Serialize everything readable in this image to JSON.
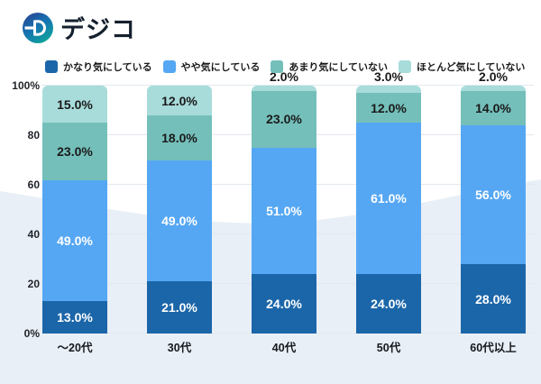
{
  "logo": {
    "text": "デジコ"
  },
  "colors": {
    "background": "#ffffff",
    "wave_fill": "#e9eff6",
    "gridline": "#e2e8ee",
    "text_dark": "#1a1a1a",
    "logo_text": "#15202e",
    "logo_gradient": [
      "#2c3f8f",
      "#1575b2",
      "#10a19c"
    ]
  },
  "chart_data": {
    "type": "bar",
    "variant": "stacked-percentage",
    "categories": [
      "～20代",
      "30代",
      "40代",
      "50代",
      "60代以上"
    ],
    "series": [
      {
        "name": "かなり気にしている",
        "color": "#1b66a9",
        "label_color": "#ffffff",
        "values": [
          13,
          21,
          24,
          24,
          28
        ]
      },
      {
        "name": "やや気にしている",
        "color": "#55a7f3",
        "label_color": "#ffffff",
        "values": [
          49,
          49,
          51,
          61,
          56
        ]
      },
      {
        "name": "あまり気にしていない",
        "color": "#74bfba",
        "label_color": "#1a1a1a",
        "values": [
          23,
          18,
          23,
          12,
          14
        ]
      },
      {
        "name": "ほとんど気にしていない",
        "color": "#a8dcdb",
        "label_color": "#1a1a1a",
        "values": [
          15,
          12,
          2,
          3,
          2
        ]
      }
    ],
    "value_labels": {
      "format": "one-decimal-percent",
      "outside_threshold": 5,
      "outside_values": {
        "40代": "2.0%",
        "50代": "3.0%",
        "60代以上": "2.0%"
      }
    },
    "y_ticks": [
      {
        "value": 100,
        "label": "100%"
      },
      {
        "value": 80,
        "label": "80"
      },
      {
        "value": 60,
        "label": "60"
      },
      {
        "value": 40,
        "label": "40"
      },
      {
        "value": 20,
        "label": "20"
      },
      {
        "value": 0,
        "label": "0%"
      }
    ],
    "ylim": [
      0,
      100
    ],
    "grid": true,
    "legend_position": "top",
    "title": ""
  }
}
